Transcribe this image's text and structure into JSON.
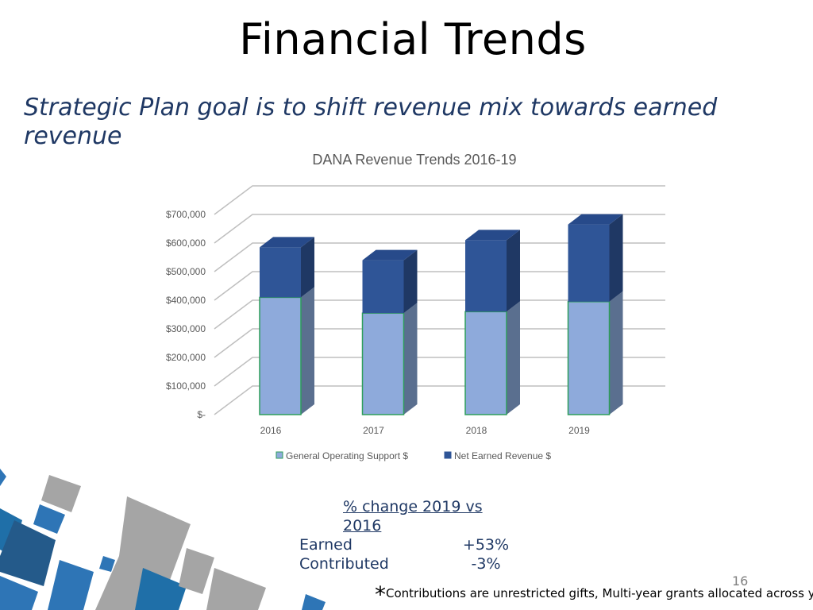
{
  "slide": {
    "title": "Financial Trends",
    "subtitle": "Strategic Plan goal is to shift revenue mix towards earned revenue",
    "page_number": "16",
    "footnote_marker": "*",
    "footnote": "Contributions are unrestricted gifts, Multi-year grants allocated across years"
  },
  "change_summary": {
    "header": "% change 2019 vs 2016",
    "rows": [
      {
        "label": "Earned",
        "value": "+53%"
      },
      {
        "label": "Contributed",
        "value": "-3%"
      }
    ]
  },
  "chart_data": {
    "type": "bar",
    "stacked": true,
    "three_d": true,
    "title": "DANA Revenue Trends 2016-19",
    "categories": [
      "2016",
      "2017",
      "2018",
      "2019"
    ],
    "series": [
      {
        "name": "General Operating Support $",
        "values": [
          410000,
          355000,
          360000,
          395000
        ],
        "color": "#8eaadb"
      },
      {
        "name": "Net Earned Revenue $",
        "values": [
          175000,
          185000,
          250000,
          270000
        ],
        "color": "#2f5597"
      }
    ],
    "ylim": [
      0,
      700000
    ],
    "yticks": [
      0,
      100000,
      200000,
      300000,
      400000,
      500000,
      600000,
      700000
    ],
    "ytick_labels": [
      "$-",
      "$100,000",
      "$200,000",
      "$300,000",
      "$400,000",
      "$500,000",
      "$600,000",
      "$700,000"
    ],
    "grid": true,
    "legend_position": "bottom"
  }
}
